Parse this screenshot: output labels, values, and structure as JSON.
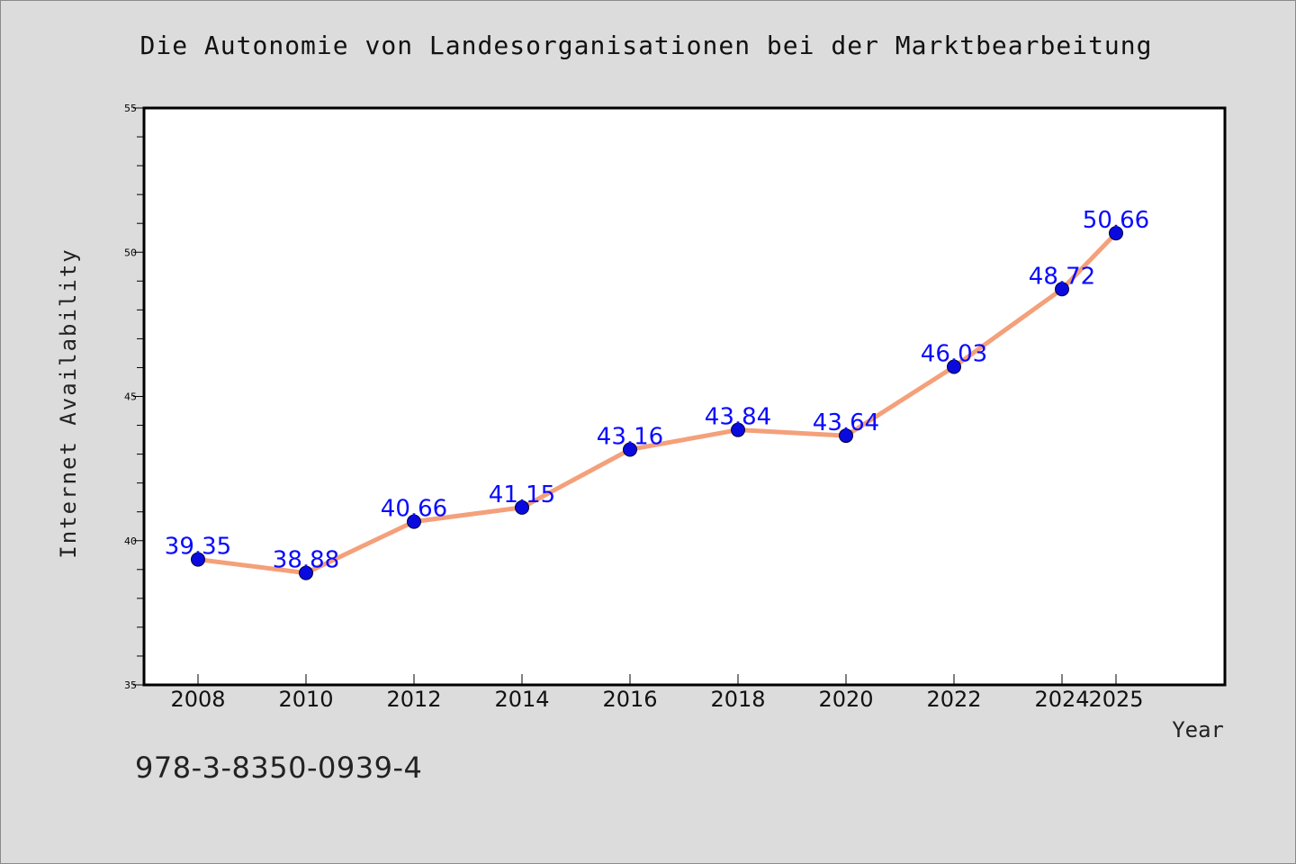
{
  "chart_data": {
    "type": "line",
    "title": "Die Autonomie von Landesorganisationen bei der Marktbearbeitung",
    "xlabel": "Year",
    "ylabel": "Internet Availability",
    "x": [
      2008,
      2010,
      2012,
      2014,
      2016,
      2018,
      2020,
      2022,
      2024,
      2025
    ],
    "categories": [
      "2008",
      "2010",
      "2012",
      "2014",
      "2016",
      "2018",
      "2020",
      "2022",
      "2024",
      "2025"
    ],
    "values": [
      39.35,
      38.88,
      40.66,
      41.15,
      43.16,
      43.84,
      43.64,
      46.03,
      48.72,
      50.66
    ],
    "data_labels": [
      "39.35",
      "38.88",
      "40.66",
      "41.15",
      "43.16",
      "43.84",
      "43.64",
      "46.03",
      "48.72",
      "50.66"
    ],
    "ylim": [
      35,
      55
    ],
    "yticks": [
      "35",
      "40",
      "45",
      "50",
      "55"
    ],
    "grid": false,
    "legend": false,
    "line_color": "#f4a07a",
    "marker_color": "#0a0adf",
    "label_color": "#0a0aff"
  },
  "footer": {
    "code": "978-3-8350-0939-4"
  }
}
